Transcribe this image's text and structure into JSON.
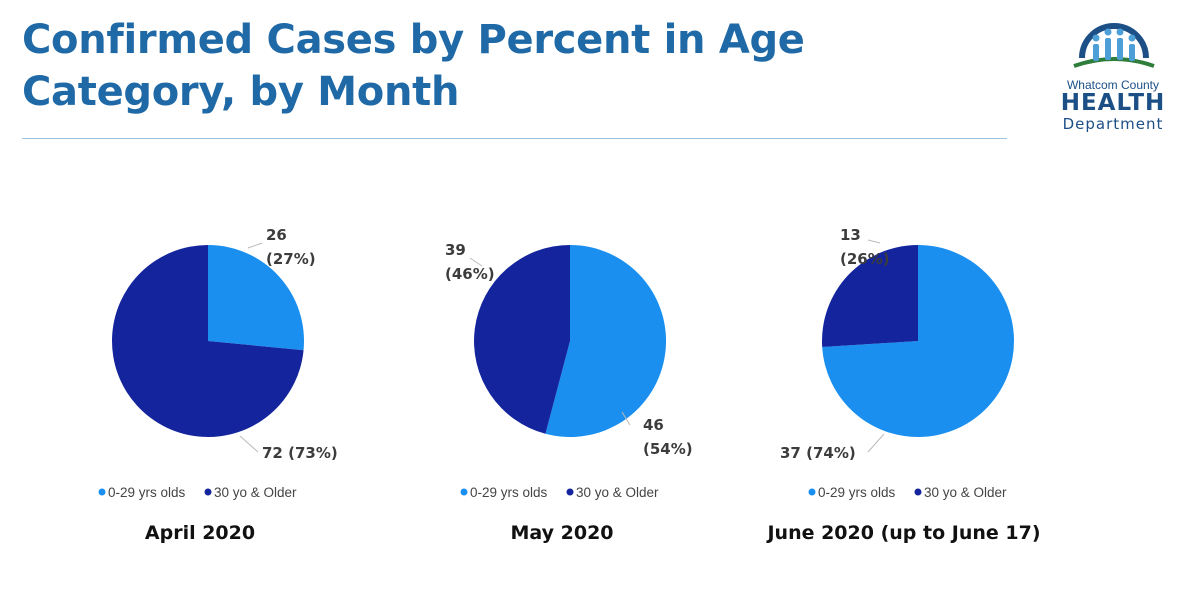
{
  "title": {
    "line1": "Confirmed Cases by Percent in Age",
    "line2": "Category, by Month"
  },
  "logo": {
    "line1": "Whatcom County",
    "line2": "HEALTH",
    "line3": "Department"
  },
  "colors": {
    "series_0_29": "#1a8fef",
    "series_30_plus": "#13249c",
    "title": "#1f69a6"
  },
  "legend": [
    "0-29 yrs olds",
    "30 yo & Older"
  ],
  "chart_data": [
    {
      "type": "pie",
      "title": "April 2020",
      "categories": [
        "0-29 yrs olds",
        "30 yo & Older"
      ],
      "values": [
        26,
        72
      ],
      "percents": [
        27,
        73
      ],
      "labels": [
        [
          "26",
          "(27%)"
        ],
        [
          "72 (73%)"
        ]
      ],
      "legend_position": "bottom"
    },
    {
      "type": "pie",
      "title": "May 2020",
      "categories": [
        "0-29 yrs olds",
        "30 yo & Older"
      ],
      "values": [
        46,
        39
      ],
      "percents": [
        54,
        46
      ],
      "labels": [
        [
          "46",
          "(54%)"
        ],
        [
          "39",
          "(46%)"
        ]
      ],
      "legend_position": "bottom"
    },
    {
      "type": "pie",
      "title": "June 2020 (up to June 17)",
      "categories": [
        "0-29 yrs olds",
        "30 yo & Older"
      ],
      "values": [
        37,
        13
      ],
      "percents": [
        74,
        26
      ],
      "labels": [
        [
          "37 (74%)"
        ],
        [
          "13",
          "(26%)"
        ]
      ],
      "legend_position": "bottom"
    }
  ]
}
